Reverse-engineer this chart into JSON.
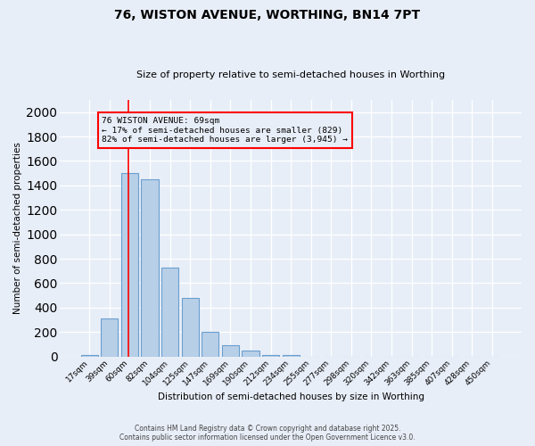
{
  "title_line1": "76, WISTON AVENUE, WORTHING, BN14 7PT",
  "title_line2": "Size of property relative to semi-detached houses in Worthing",
  "xlabel": "Distribution of semi-detached houses by size in Worthing",
  "ylabel": "Number of semi-detached properties",
  "bar_labels": [
    "17sqm",
    "39sqm",
    "60sqm",
    "82sqm",
    "104sqm",
    "125sqm",
    "147sqm",
    "169sqm",
    "190sqm",
    "212sqm",
    "234sqm",
    "255sqm",
    "277sqm",
    "298sqm",
    "320sqm",
    "342sqm",
    "363sqm",
    "385sqm",
    "407sqm",
    "428sqm",
    "450sqm"
  ],
  "bar_values": [
    15,
    310,
    1500,
    1450,
    725,
    480,
    200,
    90,
    50,
    15,
    15,
    0,
    0,
    0,
    0,
    0,
    0,
    0,
    0,
    0,
    0
  ],
  "bar_color": "#b8cfe8",
  "bar_edgecolor": "#6a9fd0",
  "background_color": "#e8eef8",
  "grid_color": "#ffffff",
  "ylim": [
    0,
    2100
  ],
  "yticks": [
    0,
    200,
    400,
    600,
    800,
    1000,
    1200,
    1400,
    1600,
    1800,
    2000
  ],
  "annotation_text_line1": "76 WISTON AVENUE: 69sqm",
  "annotation_text_line2": "← 17% of semi-detached houses are smaller (829)",
  "annotation_text_line3": "82% of semi-detached houses are larger (3,945) →",
  "footer_line1": "Contains HM Land Registry data © Crown copyright and database right 2025.",
  "footer_line2": "Contains public sector information licensed under the Open Government Licence v3.0."
}
